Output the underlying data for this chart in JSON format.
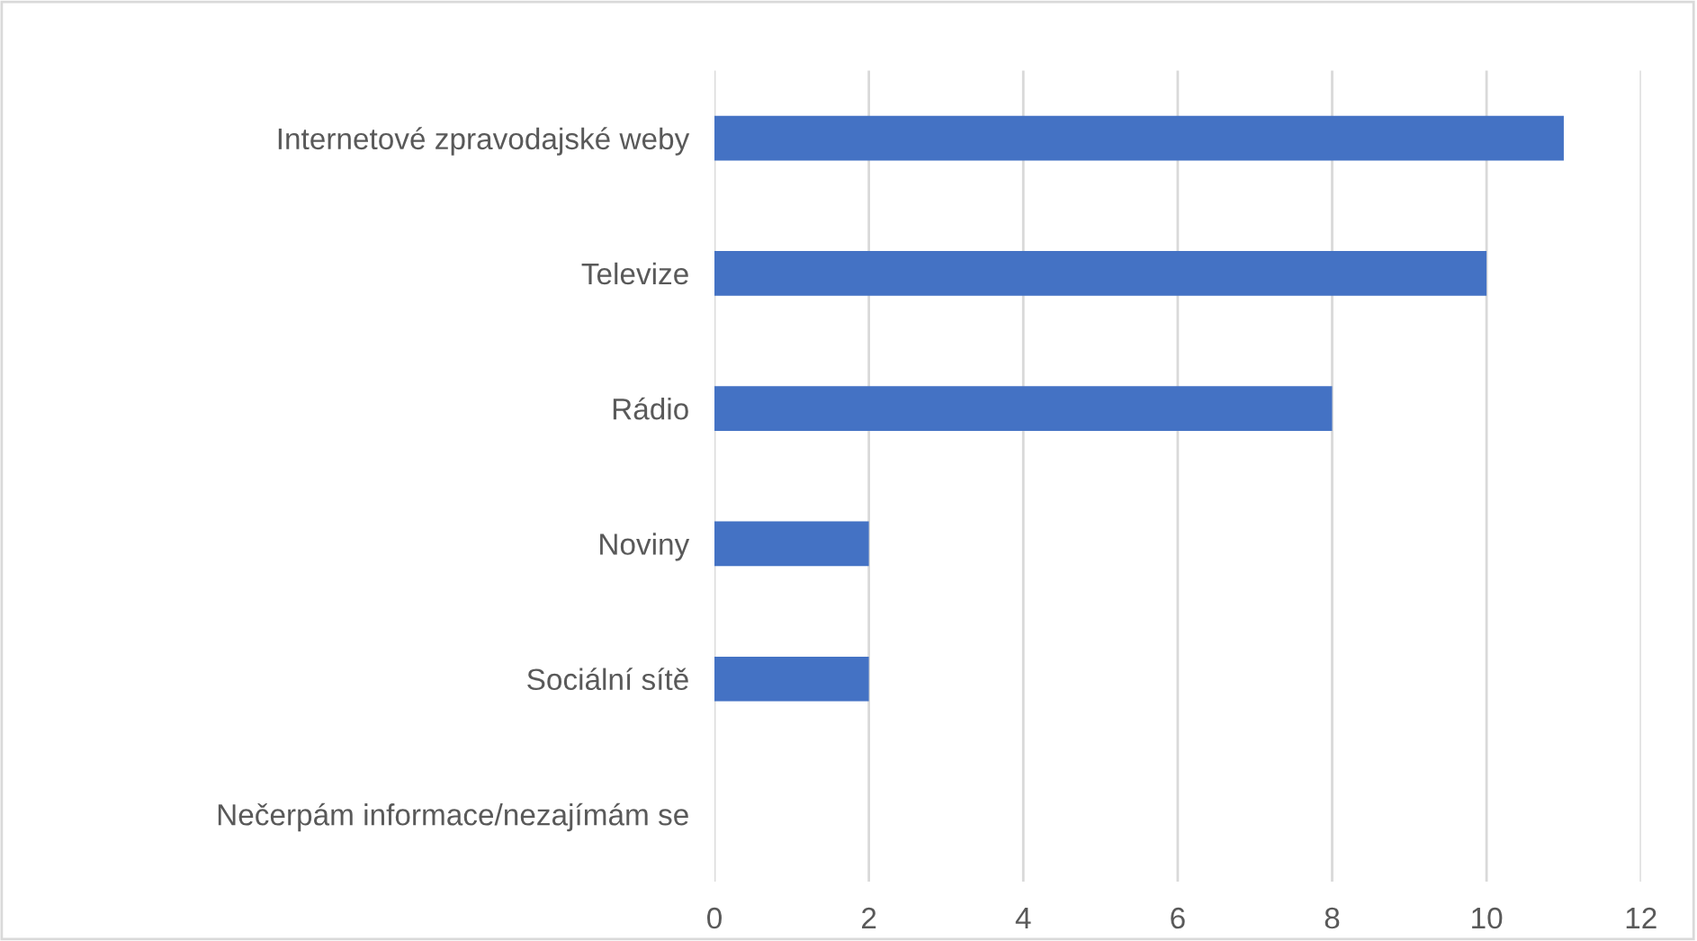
{
  "chart_data": {
    "type": "bar",
    "orientation": "horizontal",
    "categories": [
      "Internetové zpravodajské weby",
      "Televize",
      "Rádio",
      "Noviny",
      "Sociální sítě",
      "Nečerpám informace/nezajímám se"
    ],
    "values": [
      11,
      10,
      8,
      2,
      2,
      0
    ],
    "color": "#4472c4",
    "xlim": [
      0,
      12
    ],
    "xticks": [
      0,
      2,
      4,
      6,
      8,
      10,
      12
    ],
    "grid": "x",
    "legend": false
  }
}
